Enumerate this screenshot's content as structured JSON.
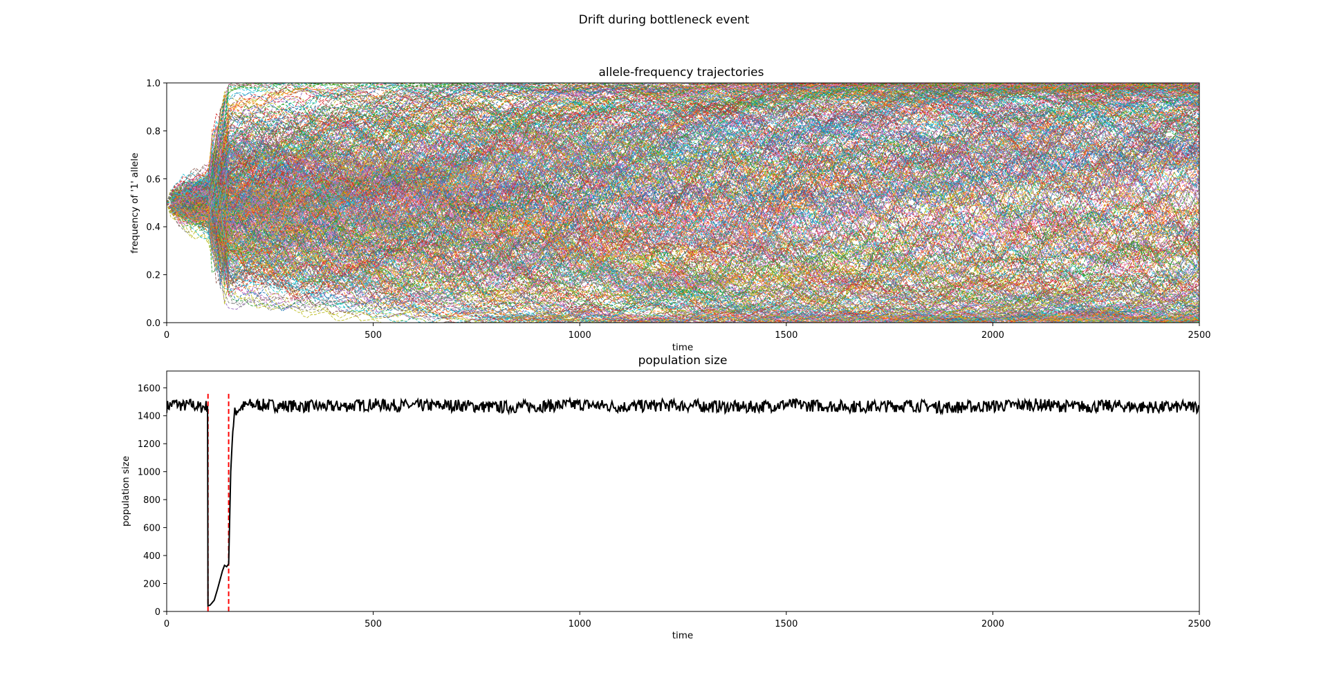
{
  "figure": {
    "suptitle": "Drift during bottleneck event"
  },
  "chart_data": [
    {
      "type": "line",
      "title": "allele-frequency trajectories",
      "xlabel": "time",
      "ylabel": "frequency of '1' allele",
      "xlim": [
        0,
        2500
      ],
      "ylim": [
        0.0,
        1.0
      ],
      "xticks": [
        "0",
        "500",
        "1000",
        "1500",
        "2000",
        "2500"
      ],
      "yticks": [
        "0.0",
        "0.2",
        "0.4",
        "0.6",
        "0.8",
        "1.0"
      ],
      "grid": false,
      "line_style": "dashed",
      "series_count_approx": 500,
      "start_value": 0.5,
      "bottleneck_start": 100,
      "bottleneck_end": 150,
      "colors": [
        "#1f77b4",
        "#ff7f0e",
        "#2ca02c",
        "#d62728",
        "#9467bd",
        "#8c564b",
        "#e377c2",
        "#7f7f7f",
        "#bcbd22",
        "#17becf"
      ]
    },
    {
      "type": "line",
      "title": "population size",
      "xlabel": "time",
      "ylabel": "population size",
      "xlim": [
        0,
        2500
      ],
      "ylim": [
        0,
        1720
      ],
      "xticks": [
        "0",
        "500",
        "1000",
        "1500",
        "2000",
        "2500"
      ],
      "yticks": [
        "0",
        "200",
        "400",
        "600",
        "800",
        "1000",
        "1200",
        "1400",
        "1600"
      ],
      "grid": false,
      "series": [
        {
          "color": "#000000",
          "x": [
            0,
            20,
            40,
            60,
            80,
            99,
            100,
            105,
            115,
            125,
            135,
            140,
            145,
            150,
            152,
            155,
            160,
            165,
            170,
            180,
            200,
            250,
            300,
            400,
            500,
            600,
            700,
            800,
            900,
            1000,
            1100,
            1200,
            1300,
            1400,
            1500,
            1600,
            1700,
            1800,
            1900,
            2000,
            2100,
            2200,
            2300,
            2400,
            2500
          ],
          "y": [
            1465,
            1490,
            1470,
            1480,
            1460,
            1470,
            40,
            45,
            80,
            180,
            290,
            330,
            320,
            340,
            600,
            1000,
            1300,
            1420,
            1440,
            1460,
            1480,
            1475,
            1470,
            1465,
            1480,
            1470,
            1475,
            1460,
            1470,
            1480,
            1465,
            1475,
            1470,
            1460,
            1480,
            1470,
            1465,
            1475,
            1460,
            1470,
            1480,
            1465,
            1470,
            1460,
            1465
          ]
        }
      ],
      "vlines": [
        {
          "x": 100,
          "y_top": 1560,
          "color": "#ff0000",
          "style": "dashed"
        },
        {
          "x": 150,
          "y_top": 1560,
          "color": "#ff0000",
          "style": "dashed"
        }
      ]
    }
  ]
}
